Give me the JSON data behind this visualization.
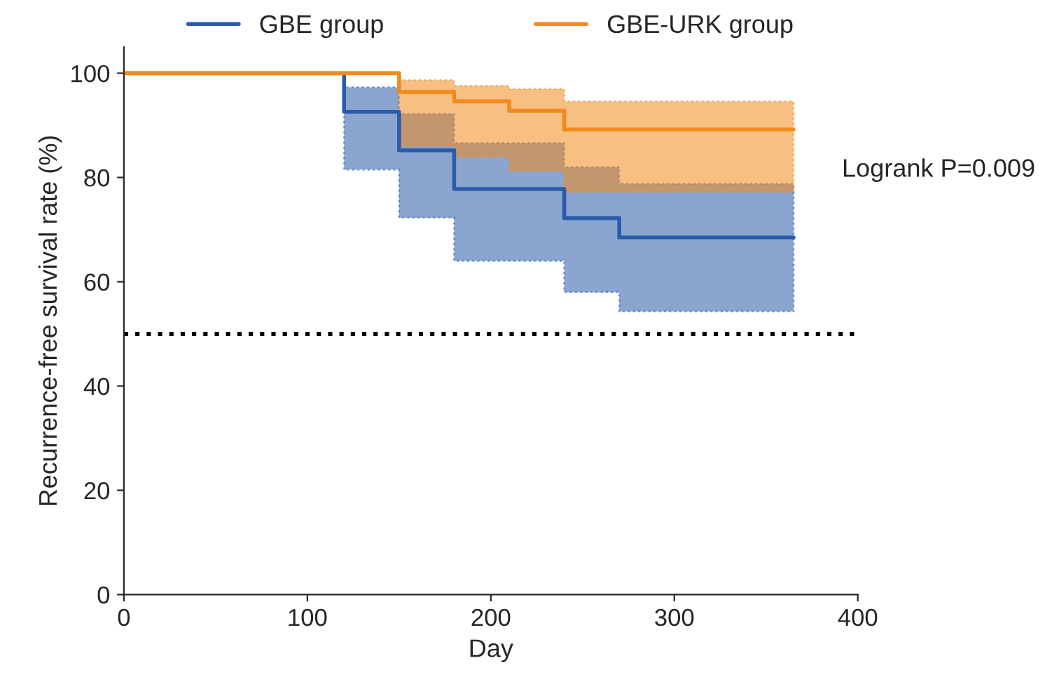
{
  "chart_data": {
    "type": "step",
    "xlabel": "Day",
    "ylabel": "Recurrence-free survival rate (%)",
    "series": [
      {
        "name": "GBE group",
        "color": "#2a5caa",
        "x": [
          0,
          120,
          150,
          180,
          210,
          240,
          270,
          365
        ],
        "values": [
          100,
          92.6,
          85.2,
          77.8,
          77.8,
          72.2,
          68.5,
          68.5
        ],
        "lower": [
          100,
          81.5,
          72.3,
          64,
          64,
          58,
          54.3,
          54.3
        ],
        "upper": [
          100,
          97.3,
          92.2,
          86.6,
          86.6,
          82,
          78.8,
          78.8
        ]
      },
      {
        "name": "GBE-URK group",
        "color": "#f28a1e",
        "x": [
          0,
          120,
          150,
          180,
          210,
          240,
          270,
          365
        ],
        "values": [
          100,
          100,
          96.4,
          94.6,
          92.8,
          89.2,
          89.2,
          89.2
        ],
        "lower": [
          100,
          100,
          86,
          83.9,
          81.2,
          77.2,
          77.2,
          77.2
        ],
        "upper": [
          100,
          100,
          98.7,
          97.6,
          97,
          94.6,
          94.6,
          94.6
        ]
      }
    ],
    "xlim": [
      0,
      400
    ],
    "xticks": [
      0,
      100,
      200,
      300,
      400
    ],
    "ylim": [
      0,
      105
    ],
    "yticks": [
      0,
      20,
      40,
      60,
      80,
      100
    ],
    "ref_lines": [
      {
        "axis": "y",
        "value": 50,
        "color": "#000000",
        "line_style": "dotted"
      }
    ],
    "annotations": [
      "Logrank P=0.009"
    ],
    "legend": "top",
    "grid": false
  }
}
